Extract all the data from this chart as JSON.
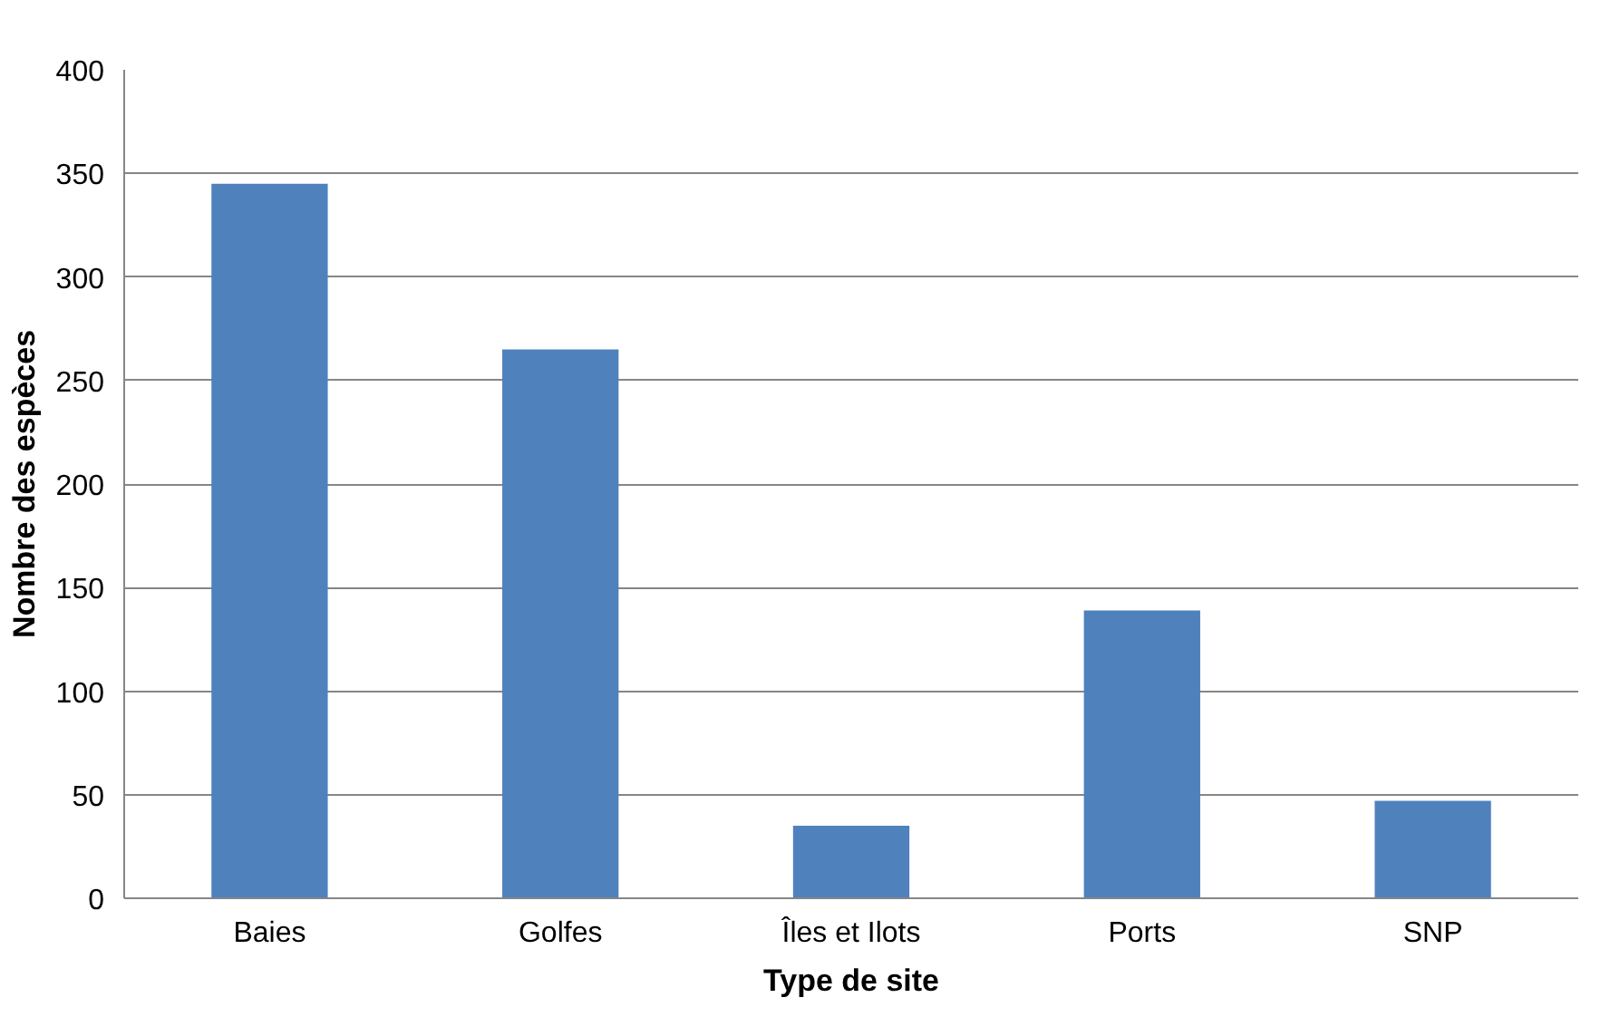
{
  "chart_data": {
    "type": "bar",
    "xlabel": "Type de site",
    "ylabel": "Nombre des espèces",
    "categories": [
      "Baies",
      "Golfes",
      "Îles et Ilots",
      "Ports",
      "SNP"
    ],
    "values": [
      345,
      265,
      35,
      139,
      47
    ],
    "color": "#4f81bd",
    "ylim": [
      0,
      400
    ],
    "yticks": [
      0,
      50,
      100,
      150,
      200,
      250,
      300,
      350,
      400
    ],
    "grid": "y"
  }
}
